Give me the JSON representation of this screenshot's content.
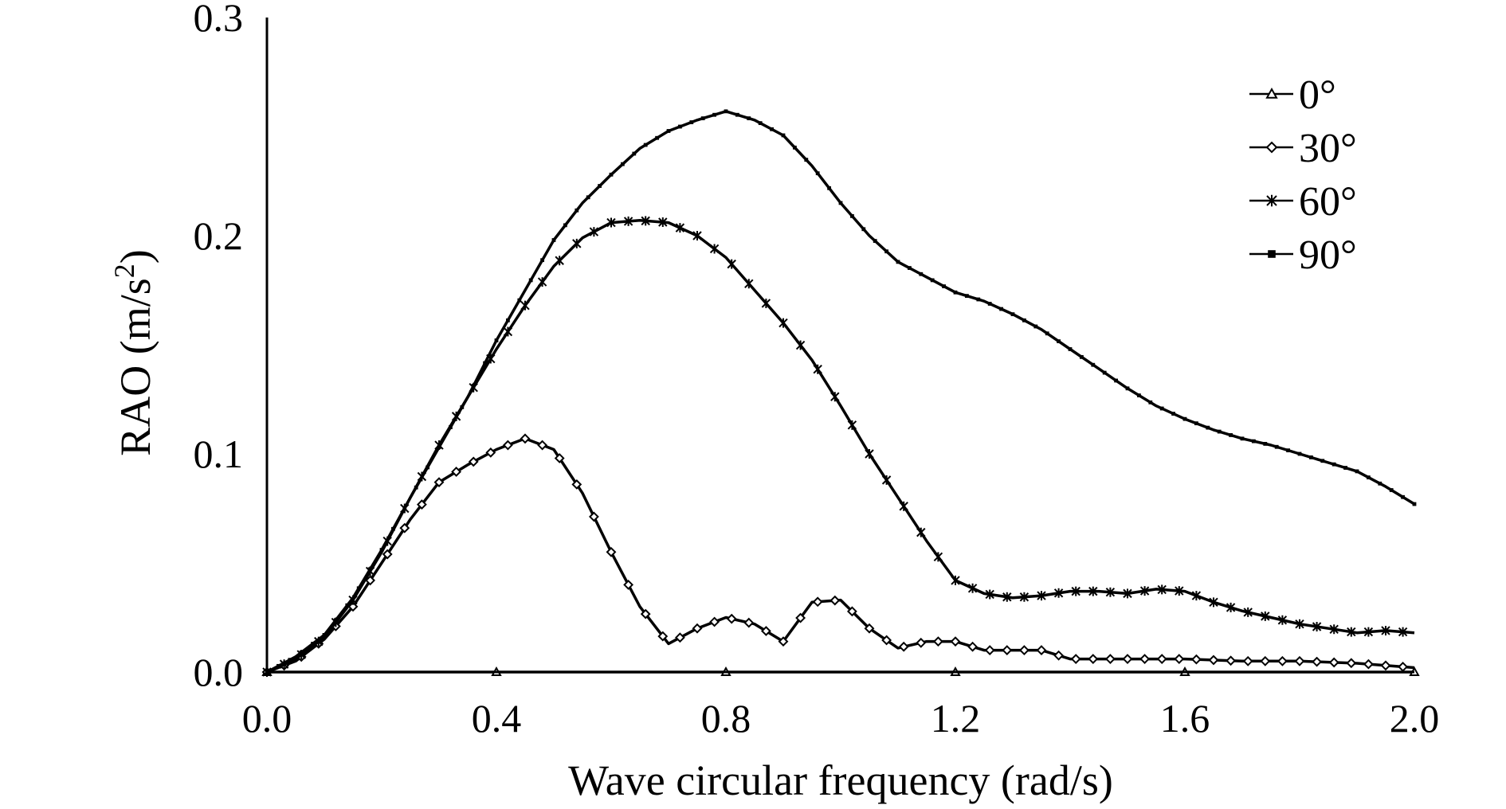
{
  "chart_data": {
    "type": "line",
    "xlabel": "Wave circular frequency (rad/s)",
    "ylabel": "RAO (m/s",
    "ylabel_sup": "2",
    "ylabel_close": ")",
    "xlim": [
      0.0,
      2.0
    ],
    "ylim": [
      0.0,
      0.3
    ],
    "x_ticks": [
      "0.0",
      "0.4",
      "0.8",
      "1.2",
      "1.6",
      "2.0"
    ],
    "y_ticks": [
      "0.0",
      "0.1",
      "0.2",
      "0.3"
    ],
    "grid": false,
    "legend_position": "top-right",
    "series": [
      {
        "name": "0°",
        "marker": "triangle",
        "x": [
          0.0,
          0.2,
          0.4,
          0.6,
          0.8,
          1.0,
          1.2,
          1.4,
          1.6,
          1.8,
          2.0
        ],
        "y": [
          0.0,
          0.0,
          0.0,
          0.0,
          0.0,
          0.0,
          0.0,
          0.0,
          0.0,
          0.0,
          0.0
        ]
      },
      {
        "name": "30°",
        "marker": "diamond",
        "x": [
          0.0,
          0.05,
          0.1,
          0.15,
          0.2,
          0.25,
          0.3,
          0.35,
          0.4,
          0.45,
          0.5,
          0.55,
          0.6,
          0.65,
          0.7,
          0.75,
          0.8,
          0.85,
          0.9,
          0.95,
          1.0,
          1.05,
          1.1,
          1.15,
          1.2,
          1.25,
          1.3,
          1.35,
          1.4,
          1.5,
          1.6,
          1.7,
          1.8,
          1.9,
          2.0
        ],
        "y": [
          0.0,
          0.005,
          0.015,
          0.03,
          0.05,
          0.07,
          0.087,
          0.095,
          0.102,
          0.107,
          0.102,
          0.082,
          0.055,
          0.03,
          0.013,
          0.02,
          0.025,
          0.022,
          0.014,
          0.032,
          0.033,
          0.02,
          0.011,
          0.014,
          0.014,
          0.01,
          0.01,
          0.01,
          0.006,
          0.006,
          0.006,
          0.005,
          0.005,
          0.004,
          0.002
        ]
      },
      {
        "name": "60°",
        "marker": "star",
        "x": [
          0.0,
          0.05,
          0.1,
          0.15,
          0.2,
          0.25,
          0.3,
          0.35,
          0.4,
          0.45,
          0.5,
          0.55,
          0.6,
          0.65,
          0.7,
          0.75,
          0.8,
          0.85,
          0.9,
          0.95,
          1.0,
          1.05,
          1.1,
          1.15,
          1.2,
          1.25,
          1.3,
          1.35,
          1.4,
          1.45,
          1.5,
          1.55,
          1.6,
          1.65,
          1.7,
          1.75,
          1.8,
          1.85,
          1.9,
          1.95,
          2.0
        ],
        "y": [
          0.0,
          0.006,
          0.016,
          0.033,
          0.055,
          0.08,
          0.104,
          0.126,
          0.148,
          0.168,
          0.186,
          0.199,
          0.206,
          0.207,
          0.206,
          0.2,
          0.19,
          0.175,
          0.16,
          0.143,
          0.122,
          0.1,
          0.08,
          0.06,
          0.042,
          0.036,
          0.034,
          0.035,
          0.037,
          0.037,
          0.036,
          0.038,
          0.037,
          0.032,
          0.028,
          0.025,
          0.022,
          0.02,
          0.018,
          0.019,
          0.018
        ]
      },
      {
        "name": "90°",
        "marker": "square",
        "x": [
          0.0,
          0.05,
          0.1,
          0.15,
          0.2,
          0.25,
          0.3,
          0.35,
          0.4,
          0.45,
          0.5,
          0.55,
          0.6,
          0.65,
          0.7,
          0.75,
          0.8,
          0.85,
          0.9,
          0.95,
          1.0,
          1.05,
          1.1,
          1.15,
          1.2,
          1.25,
          1.3,
          1.35,
          1.4,
          1.45,
          1.5,
          1.55,
          1.6,
          1.65,
          1.7,
          1.75,
          1.8,
          1.85,
          1.9,
          1.95,
          2.0
        ],
        "y": [
          0.0,
          0.007,
          0.017,
          0.034,
          0.056,
          0.08,
          0.103,
          0.126,
          0.152,
          0.175,
          0.198,
          0.215,
          0.228,
          0.24,
          0.248,
          0.253,
          0.257,
          0.253,
          0.246,
          0.232,
          0.215,
          0.2,
          0.188,
          0.181,
          0.174,
          0.17,
          0.164,
          0.157,
          0.148,
          0.139,
          0.13,
          0.122,
          0.116,
          0.111,
          0.107,
          0.104,
          0.1,
          0.096,
          0.092,
          0.085,
          0.077
        ]
      }
    ]
  }
}
